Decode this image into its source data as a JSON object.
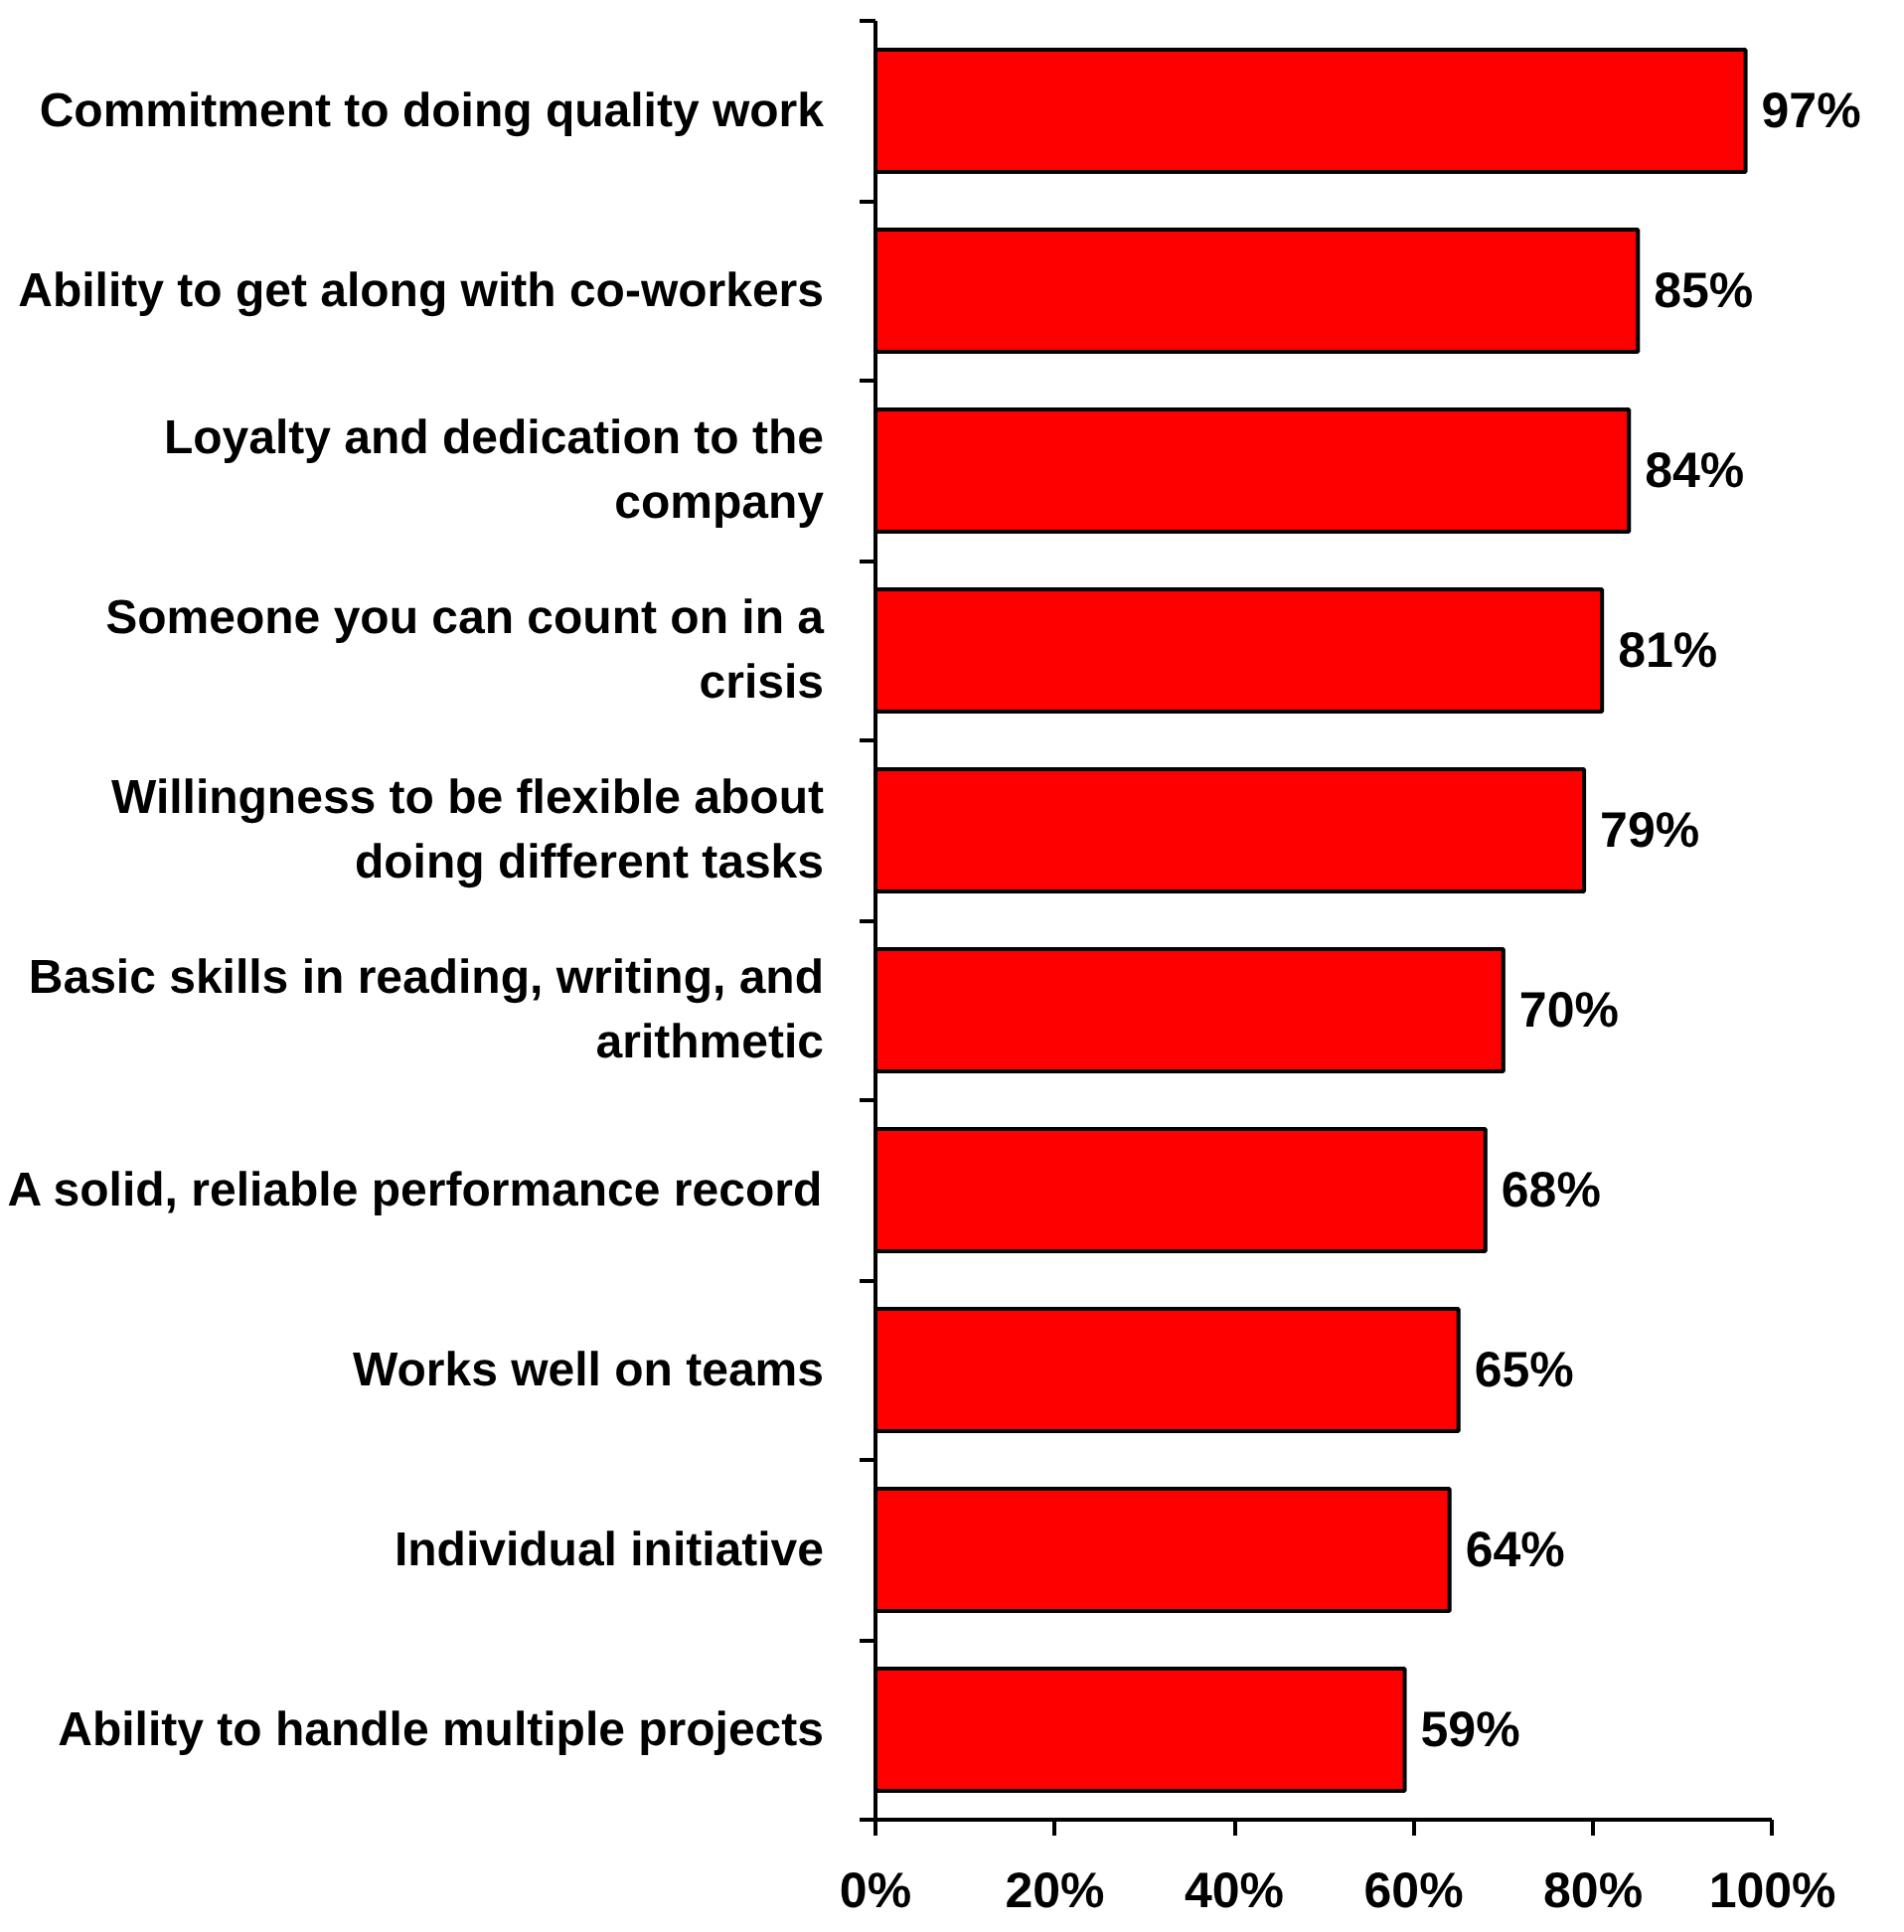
{
  "chart_data": {
    "type": "bar",
    "orientation": "horizontal",
    "categories": [
      "Commitment to doing quality work",
      "Ability to get along with co-workers",
      "Loyalty and dedication to the company",
      "Someone you can count on in a crisis",
      "Willingness to be flexible about doing different tasks",
      "Basic skills in reading, writing, and arithmetic",
      "A solid, reliable performance record",
      "Works well on teams",
      "Individual initiative",
      "Ability to handle multiple projects"
    ],
    "values": [
      97,
      85,
      84,
      81,
      79,
      70,
      68,
      65,
      64,
      59
    ],
    "value_labels": [
      "97%",
      "85%",
      "84%",
      "81%",
      "79%",
      "70%",
      "68%",
      "65%",
      "64%",
      "59%"
    ],
    "color": "#ff0000",
    "xlim": [
      0,
      100
    ],
    "xticks": [
      {
        "value": 0,
        "label": "0%"
      },
      {
        "value": 20,
        "label": "20%"
      },
      {
        "value": 40,
        "label": "40%"
      },
      {
        "value": 60,
        "label": "60%"
      },
      {
        "value": 80,
        "label": "80%"
      },
      {
        "value": 100,
        "label": "100%"
      }
    ],
    "grid": false
  }
}
